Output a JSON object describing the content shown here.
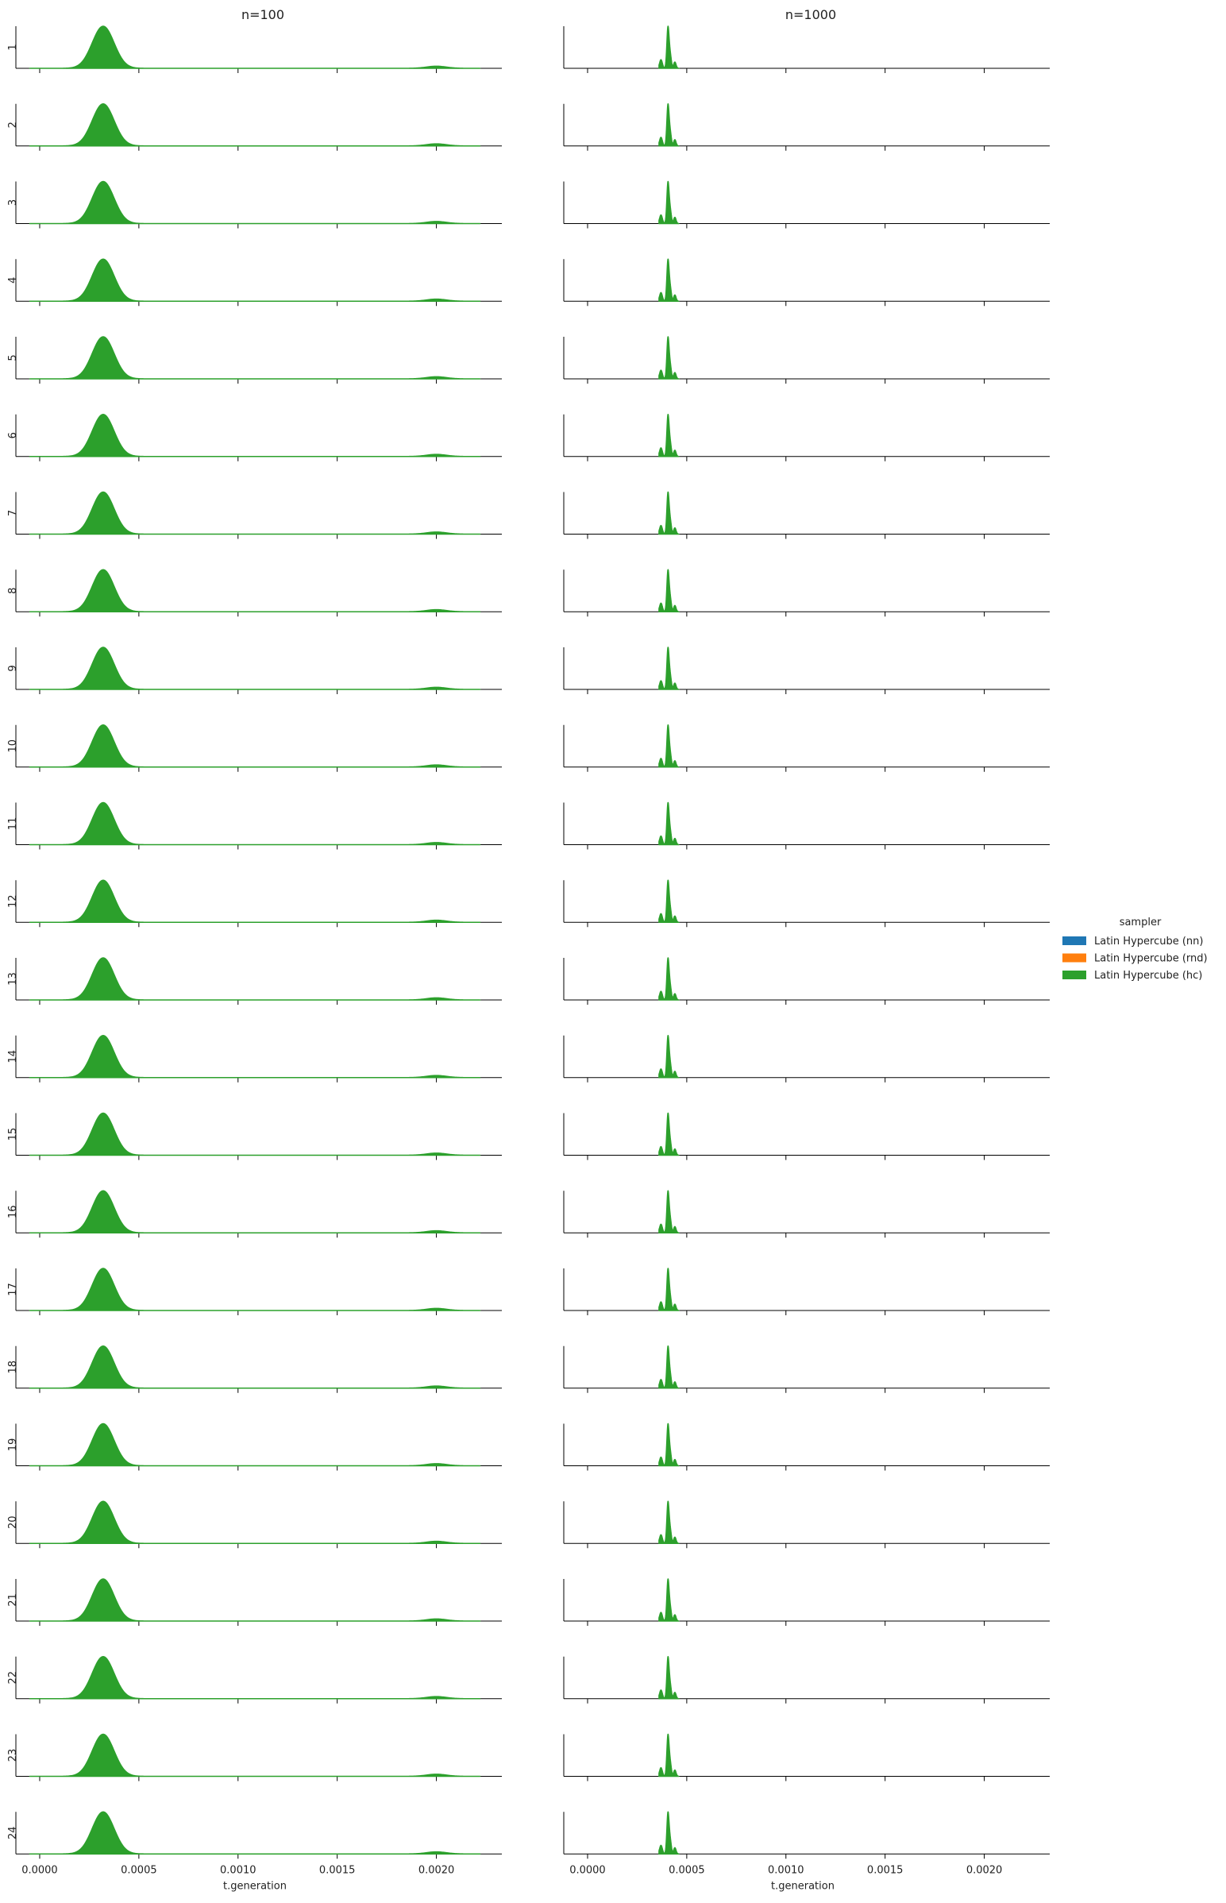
{
  "chart_data": {
    "type": "area",
    "title": "",
    "xlabel": "t.generation",
    "ylabel": "",
    "xlim": [
      -8e-05,
      0.00233
    ],
    "xticks": [
      0.0,
      0.0005,
      0.001,
      0.0015,
      0.002
    ],
    "xtick_labels": [
      "0.0000",
      "0.0005",
      "0.0010",
      "0.0015",
      "0.0020"
    ],
    "grid": false,
    "columns": [
      {
        "label": "n=100",
        "n": 100
      },
      {
        "label": "n=1000",
        "n": 1000
      }
    ],
    "rows": [
      "1",
      "2",
      "3",
      "4",
      "5",
      "6",
      "7",
      "8",
      "9",
      "10",
      "11",
      "12",
      "13",
      "14",
      "15",
      "16",
      "17",
      "18",
      "19",
      "20",
      "21",
      "22",
      "23",
      "24"
    ],
    "legend": {
      "title": "sampler",
      "placement": "center-right",
      "entries": [
        {
          "label": "Latin Hypercube (nn)",
          "color": "#1f77b4"
        },
        {
          "label": "Latin Hypercube (rnd)",
          "color": "#ff7f0e"
        },
        {
          "label": "Latin Hypercube (hc)",
          "color": "#2ca02c"
        }
      ]
    },
    "series": [
      {
        "name": "Latin Hypercube (hc)",
        "color": "#2ca02c"
      }
    ],
    "density": {
      "n=100": {
        "x_range": [
          -5e-05,
          0.00222
        ],
        "components": [
          {
            "mean": 0.00032,
            "sd": 5.5e-05,
            "height": 1.0
          },
          {
            "mean": 0.002,
            "sd": 5e-05,
            "height": 0.05
          }
        ]
      },
      "n=1000": {
        "x_range": [
          0.00036,
          0.00046
        ],
        "components": [
          {
            "mean": 0.000405,
            "sd": 5.5e-06,
            "height": 1.0
          },
          {
            "mean": 0.000416,
            "sd": 6e-06,
            "height": 0.35
          },
          {
            "mean": 0.00037,
            "sd": 7e-06,
            "height": 0.22
          },
          {
            "mean": 0.00044,
            "sd": 6e-06,
            "height": 0.16
          }
        ]
      }
    }
  }
}
